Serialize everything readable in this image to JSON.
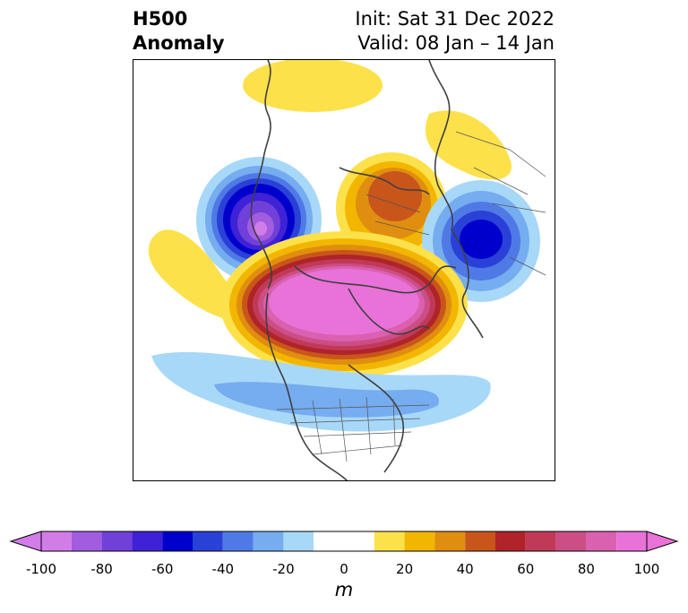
{
  "header": {
    "title_line1": "H500",
    "title_line2": "Anomaly",
    "init_label": "Init: Sat 31 Dec 2022",
    "valid_label": "Valid: 08 Jan – 14 Jan"
  },
  "map": {
    "projection": "north-polar-stereographic",
    "field": "500 hPa geopotential height anomaly"
  },
  "colorbar": {
    "unit_label": "m",
    "min": -100,
    "max": 100,
    "extend": "both",
    "tick_labels": [
      "-100",
      "-80",
      "-60",
      "-40",
      "-20",
      "0",
      "20",
      "40",
      "60",
      "80",
      "100"
    ],
    "bins": [
      {
        "from": -100,
        "to": -90,
        "color": "#d27ce8"
      },
      {
        "from": -90,
        "to": -80,
        "color": "#a25ce0"
      },
      {
        "from": -80,
        "to": -70,
        "color": "#7040d8"
      },
      {
        "from": -70,
        "to": -60,
        "color": "#3f22d6"
      },
      {
        "from": -60,
        "to": -50,
        "color": "#0000cd"
      },
      {
        "from": -50,
        "to": -40,
        "color": "#2a41d8"
      },
      {
        "from": -40,
        "to": -30,
        "color": "#4f7ae6"
      },
      {
        "from": -30,
        "to": -20,
        "color": "#76acf0"
      },
      {
        "from": -20,
        "to": -10,
        "color": "#a8d8f8"
      },
      {
        "from": -10,
        "to": 10,
        "color": "#ffffff"
      },
      {
        "from": 10,
        "to": 20,
        "color": "#fde14a"
      },
      {
        "from": 20,
        "to": 30,
        "color": "#f2b600"
      },
      {
        "from": 30,
        "to": 40,
        "color": "#e08e10"
      },
      {
        "from": 40,
        "to": 50,
        "color": "#c8561a"
      },
      {
        "from": 50,
        "to": 60,
        "color": "#b0232a"
      },
      {
        "from": 60,
        "to": 70,
        "color": "#c03a58"
      },
      {
        "from": 70,
        "to": 80,
        "color": "#cc4e86"
      },
      {
        "from": 80,
        "to": 90,
        "color": "#da60b0"
      },
      {
        "from": 90,
        "to": 100,
        "color": "#e872d8"
      }
    ],
    "under_color": "#d27ce8",
    "over_color": "#e872d8"
  }
}
